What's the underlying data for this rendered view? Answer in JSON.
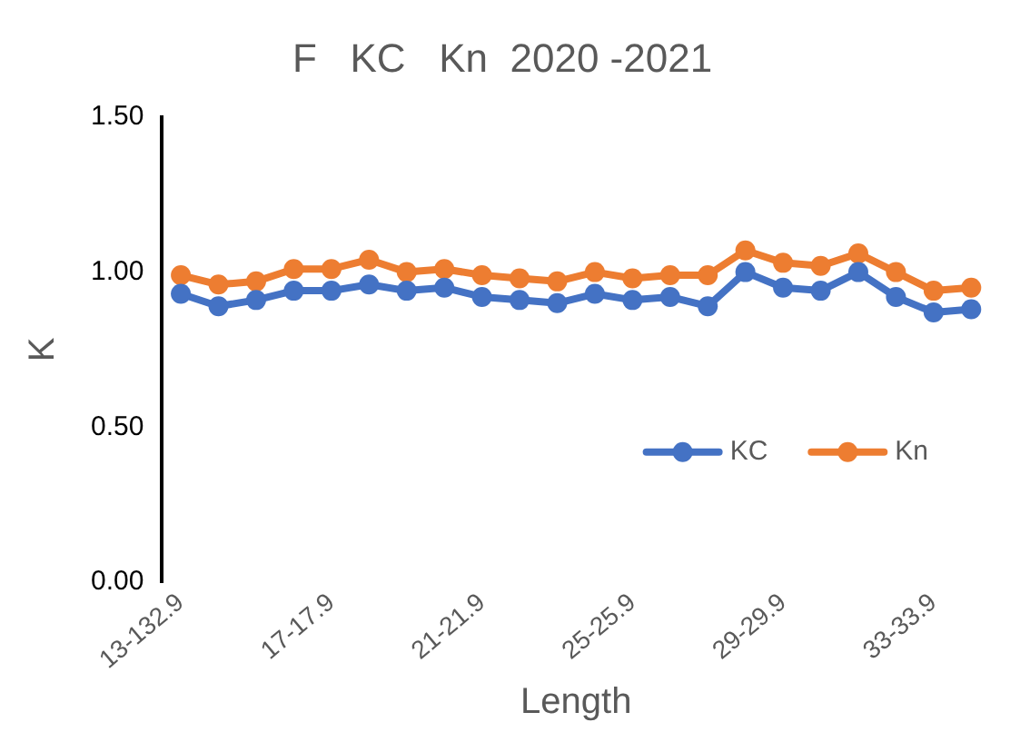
{
  "chart_data": {
    "type": "line",
    "title": "F   KC   Kn  2020 -2021",
    "xlabel": "Length",
    "ylabel": "K",
    "categories": [
      "13-132.9",
      null,
      null,
      null,
      "17-17.9",
      null,
      null,
      null,
      "21-21.9",
      null,
      null,
      null,
      "25-25.9",
      null,
      null,
      null,
      "29-29.9",
      null,
      null,
      null,
      "33-33.9",
      null
    ],
    "series": [
      {
        "name": "KC",
        "color": "#4472c4",
        "values": [
          0.93,
          0.89,
          0.91,
          0.94,
          0.94,
          0.96,
          0.94,
          0.95,
          0.92,
          0.91,
          0.9,
          0.93,
          0.91,
          0.92,
          0.89,
          1.0,
          0.95,
          0.94,
          1.0,
          0.92,
          0.87,
          0.88
        ]
      },
      {
        "name": "Kn",
        "color": "#ed7d31",
        "values": [
          0.99,
          0.96,
          0.97,
          1.01,
          1.01,
          1.04,
          1.0,
          1.01,
          0.99,
          0.98,
          0.97,
          1.0,
          0.98,
          0.99,
          0.99,
          1.07,
          1.03,
          1.02,
          1.06,
          1.0,
          0.94,
          0.95
        ]
      }
    ],
    "ylim": [
      0,
      1.5
    ],
    "yticks": [
      {
        "value": 0,
        "label": "0.00"
      },
      {
        "value": 0.5,
        "label": "0.50"
      },
      {
        "value": 1,
        "label": "1.00"
      },
      {
        "value": 1.5,
        "label": "1.50"
      }
    ],
    "grid": false,
    "legend": "right",
    "marker": "circle",
    "line_style": "solid"
  }
}
